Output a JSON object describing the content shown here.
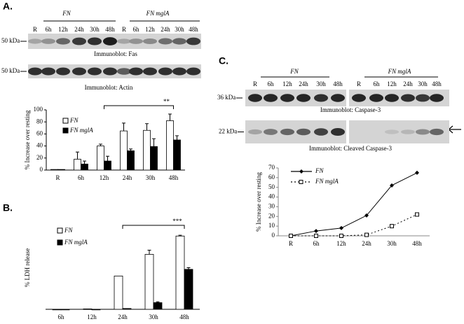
{
  "panel_labels": [
    "A.",
    "B.",
    "C."
  ],
  "blots": {
    "a": {
      "groups": [
        "FN",
        "FN mglA"
      ],
      "lanes": [
        "R",
        "6h",
        "12h",
        "24h",
        "30h",
        "48h",
        "R",
        "6h",
        "12h",
        "24h",
        "30h",
        "48h"
      ],
      "top": {
        "marker": "50 kDa",
        "caption": "Immunoblot: Fas"
      },
      "bottom": {
        "marker": "50 kDa",
        "caption": "Immunoblot: Actin"
      }
    },
    "c": {
      "groups": [
        "FN",
        "FN mglA"
      ],
      "lanes": [
        "R",
        "6h",
        "12h",
        "24h",
        "30h",
        "48h",
        "R",
        "6h",
        "12h",
        "24h",
        "30h",
        "48h"
      ],
      "top": {
        "marker": "36 kDa",
        "caption": "Immunoblot: Caspase-3"
      },
      "bottom": {
        "marker": "22 kDa",
        "caption": "Immunoblot: Cleaved Caspase-3"
      }
    }
  },
  "chart_data": [
    {
      "type": "bar",
      "y_label": "% Increase over resting",
      "annotation": "**",
      "categories": [
        "R",
        "6h",
        "12h",
        "24h",
        "30h",
        "48h"
      ],
      "series": [
        {
          "name": "FN",
          "color": "#ffffff",
          "values": [
            1,
            18,
            40,
            65,
            66,
            82
          ],
          "errors": [
            null,
            12,
            3,
            13,
            11,
            11
          ]
        },
        {
          "name": "FN mglA",
          "color": "#000000",
          "values": [
            1,
            10,
            15,
            32,
            39,
            50
          ],
          "errors": [
            null,
            5,
            8,
            3,
            13,
            7
          ]
        }
      ],
      "ylim": [
        0,
        100
      ],
      "yticks": [
        0,
        20,
        40,
        60,
        80,
        100
      ]
    },
    {
      "type": "bar",
      "y_label": "% LDH release",
      "annotation": "***",
      "categories": [
        "6h",
        "12h",
        "24h",
        "30h",
        "48h"
      ],
      "series": [
        {
          "name": "FN",
          "color": "#ffffff",
          "values": [
            0,
            0.5,
            40,
            66,
            88
          ],
          "errors": [
            null,
            null,
            null,
            5,
            1
          ]
        },
        {
          "name": "FN mglA",
          "color": "#000000",
          "values": [
            0,
            0,
            1,
            8,
            48
          ],
          "errors": [
            null,
            null,
            null,
            1,
            2
          ]
        }
      ],
      "ylim": [
        0,
        100
      ]
    },
    {
      "type": "line",
      "y_label": "% Increase over resting",
      "categories": [
        "R",
        "6h",
        "12h",
        "24h",
        "30h",
        "48h"
      ],
      "series": [
        {
          "name": "FN",
          "color": "#000000",
          "values": [
            0,
            5,
            8,
            21,
            52,
            65
          ]
        },
        {
          "name": "FN mglA",
          "color": "#000000",
          "values": [
            0,
            0,
            0,
            1,
            10,
            22
          ]
        }
      ],
      "ylim": [
        0,
        70
      ],
      "yticks": [
        0,
        10,
        20,
        30,
        40,
        50,
        60,
        70
      ]
    }
  ]
}
